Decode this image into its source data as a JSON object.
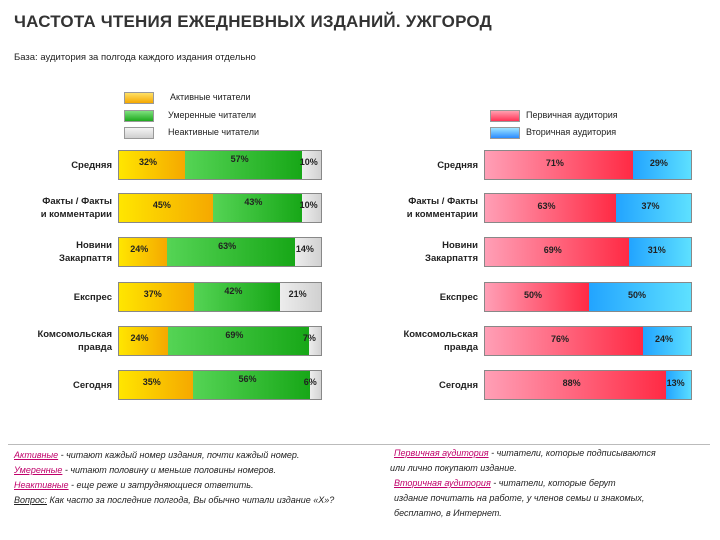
{
  "page": {
    "title": "ЧАСТОТА ЧТЕНИЯ ЕЖЕДНЕВНЫХ ИЗДАНИЙ. УЖГОРОД",
    "base": "База: аудитория за полгода каждого издания отдельно"
  },
  "legend_left": [
    {
      "label": "Активные читатели",
      "color": "#f5a800"
    },
    {
      "label": "Умеренные читатели",
      "color": "#2bbf2b"
    },
    {
      "label": "Неактивные читатели",
      "color": "#d8d8d8"
    }
  ],
  "legend_right": [
    {
      "label": "Первичная аудитория",
      "color": "#ff3355"
    },
    {
      "label": "Вторичная аудитория",
      "color": "#2a8cff"
    }
  ],
  "chart_data": [
    {
      "type": "bar",
      "stacked": true,
      "orientation": "horizontal",
      "categories": [
        "Средняя",
        "Факты / Факты и комментарии",
        "Новини Закарпаття",
        "Експрес",
        "Комсомольская правда",
        "Сегодня"
      ],
      "category_lines": [
        [
          "Средняя"
        ],
        [
          "Факты / Факты",
          "и комментарии"
        ],
        [
          "Новини",
          "Закарпаття"
        ],
        [
          "Експрес"
        ],
        [
          "Комсомольская",
          "правда"
        ],
        [
          "Сегодня"
        ]
      ],
      "series": [
        {
          "name": "Активные читатели",
          "values": [
            32,
            45,
            24,
            37,
            24,
            35
          ],
          "labels": [
            "32%",
            "45%",
            "24%",
            "37%",
            "24%",
            "35%"
          ],
          "color": "#f5a800"
        },
        {
          "name": "Умеренные читатели",
          "values": [
            57,
            43,
            63,
            42,
            69,
            56
          ],
          "labels": [
            "57%",
            "43%",
            "63%",
            "42%",
            "69%",
            "56%"
          ],
          "color": "#2bbf2b"
        },
        {
          "name": "Неактивные читатели",
          "values": [
            10,
            10,
            14,
            21,
            7,
            6
          ],
          "labels": [
            "10%",
            "10%",
            "14%",
            "21%",
            "7%",
            "6%"
          ],
          "color": "#d8d8d8"
        }
      ]
    },
    {
      "type": "bar",
      "stacked": true,
      "orientation": "horizontal",
      "categories": [
        "Средняя",
        "Факты / Факты и комментарии",
        "Новини Закарпаття",
        "Експрес",
        "Комсомольская правда",
        "Сегодня"
      ],
      "category_lines": [
        [
          "Средняя"
        ],
        [
          "Факты / Факты",
          "и комментарии"
        ],
        [
          "Новини",
          "Закарпаття"
        ],
        [
          "Експрес"
        ],
        [
          "Комсомольская",
          "правда"
        ],
        [
          "Сегодня"
        ]
      ],
      "series": [
        {
          "name": "Первичная аудитория",
          "values": [
            71,
            63,
            69,
            50,
            76,
            88
          ],
          "labels": [
            "71%",
            "63%",
            "69%",
            "50%",
            "76%",
            "88%"
          ],
          "color": "#ff3355"
        },
        {
          "name": "Вторичная аудитория",
          "values": [
            29,
            37,
            31,
            50,
            24,
            13
          ],
          "labels": [
            "29%",
            "37%",
            "31%",
            "50%",
            "24%",
            "13%"
          ],
          "color": "#2a8cff"
        }
      ]
    }
  ],
  "notes_left": [
    {
      "term": "Активные",
      "text": " - читают каждый номер издания, почти каждый номер."
    },
    {
      "term": "Умеренные",
      "text": " - читают половину и меньше половины номеров."
    },
    {
      "term": "Неактивные",
      "text": " - еще реже и затрудняющиеся ответить."
    },
    {
      "q": "Вопрос:",
      "text": " Как часто за последние полгода, Вы обычно читали издание «Х»?"
    }
  ],
  "notes_right": {
    "line1_term": "Первичная аудитория",
    "line1_text": " - читатели, которые подписываются",
    "line2_text": "или лично покупают издание.",
    "line3_term": "Вторичная аудитория",
    "line3_text": " - читатели, которые берут",
    "line4_text": "издание почитать на работе, у членов семьи и знакомых,",
    "line5_text": "бесплатно, в Интернет."
  }
}
